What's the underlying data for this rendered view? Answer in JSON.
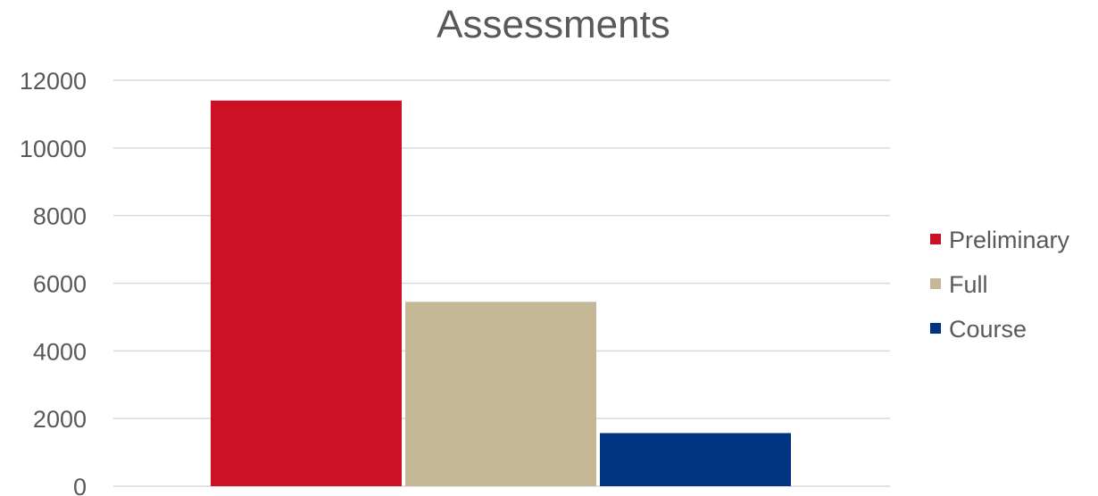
{
  "chart_data": {
    "type": "bar",
    "title": "Assessments",
    "categories": [
      ""
    ],
    "series": [
      {
        "name": "Preliminary",
        "values": [
          11400
        ],
        "color": "#cc1126"
      },
      {
        "name": "Full",
        "values": [
          5450
        ],
        "color": "#c4b896"
      },
      {
        "name": "Course",
        "values": [
          1570
        ],
        "color": "#003380"
      }
    ],
    "ylim": [
      0,
      12000
    ],
    "yticks": [
      0,
      2000,
      4000,
      6000,
      8000,
      10000,
      12000
    ],
    "grid": true,
    "legend": "right"
  }
}
